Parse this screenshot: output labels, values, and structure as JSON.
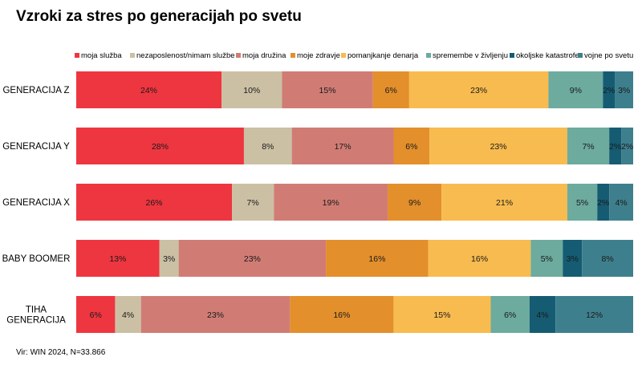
{
  "title": "Vzroki za stres po generacijah po svetu",
  "source": "Vir: WIN 2024, N=33.866",
  "colors": [
    "#ee3640",
    "#cbc0a4",
    "#d07c75",
    "#e38f2c",
    "#f8bb4f",
    "#6cab9e",
    "#155c73",
    "#3e7f8d"
  ],
  "chart_data": {
    "type": "bar",
    "orientation": "horizontal",
    "stacked": true,
    "unit": "%",
    "legend_position": "top",
    "categories": [
      "GENERACIJA Z",
      "GENERACIJA Y",
      "GENERACIJA X",
      "BABY BOOMER",
      "TIHA GENERACIJA"
    ],
    "series": [
      {
        "name": "moja služba",
        "values": [
          24,
          28,
          26,
          13,
          6
        ]
      },
      {
        "name": "nezaposlenost/nimam službe",
        "values": [
          10,
          8,
          7,
          3,
          4
        ]
      },
      {
        "name": "moja družina",
        "values": [
          15,
          17,
          19,
          23,
          23
        ]
      },
      {
        "name": "moje zdravje",
        "values": [
          6,
          6,
          9,
          16,
          16
        ]
      },
      {
        "name": "pomanjkanje denarja",
        "values": [
          23,
          23,
          21,
          16,
          15
        ]
      },
      {
        "name": "spremembe v življenju",
        "values": [
          9,
          7,
          5,
          5,
          6
        ]
      },
      {
        "name": "okoljske katastrofe",
        "values": [
          2,
          2,
          2,
          3,
          4
        ]
      },
      {
        "name": "vojne po svetu",
        "values": [
          3,
          2,
          4,
          8,
          12
        ]
      }
    ]
  }
}
